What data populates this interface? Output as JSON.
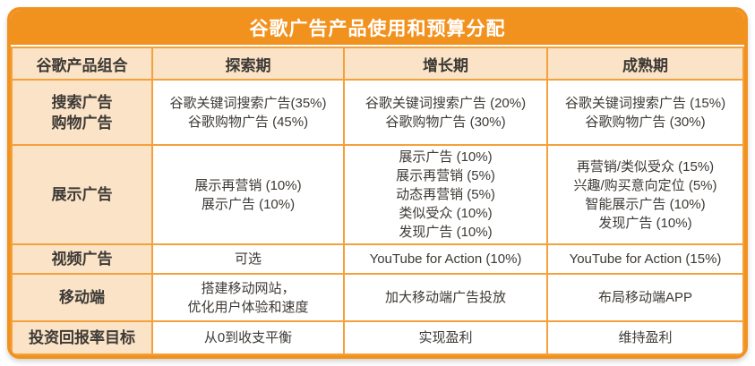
{
  "colors": {
    "accent_orange": "#F2921E",
    "grid_orange": "#F5A13B",
    "header_peach": "#FAE3C6",
    "text_dark": "#3D3935",
    "title_text": "#FFFFFF"
  },
  "chart_data": {
    "type": "table",
    "title": "谷歌广告产品使用和预算分配",
    "columns": [
      "谷歌产品组合",
      "探索期",
      "增长期",
      "成熟期"
    ],
    "rows": [
      {
        "label_lines": [
          "搜索广告",
          "购物广告"
        ],
        "exploration": [
          "谷歌关键词搜索广告(35%)",
          "谷歌购物广告 (45%)"
        ],
        "growth": [
          "谷歌关键词搜索广告 (20%)",
          "谷歌购物广告 (30%)"
        ],
        "maturity": [
          "谷歌关键词搜索广告 (15%)",
          "谷歌购物广告 (30%)"
        ]
      },
      {
        "label_lines": [
          "展示广告"
        ],
        "exploration": [
          "展示再营销 (10%)",
          "展示广告 (10%)"
        ],
        "growth": [
          "展示广告 (10%)",
          "展示再营销 (5%)",
          "动态再营销 (5%)",
          "类似受众 (10%)",
          "发现广告 (10%)"
        ],
        "maturity": [
          "再营销/类似受众 (15%)",
          "兴趣/购买意向定位 (5%)",
          "智能展示广告 (10%)",
          "发现广告 (10%)"
        ]
      },
      {
        "label_lines": [
          "视频广告"
        ],
        "exploration": [
          "可选"
        ],
        "growth": [
          "YouTube for Action (10%)"
        ],
        "maturity": [
          "YouTube for Action (15%)"
        ]
      },
      {
        "label_lines": [
          "移动端"
        ],
        "exploration": [
          "搭建移动网站，",
          "优化用户体验和速度"
        ],
        "growth": [
          "加大移动端广告投放"
        ],
        "maturity": [
          "布局移动端APP"
        ]
      },
      {
        "label_lines": [
          "投资回报率目标"
        ],
        "exploration": [
          "从0到收支平衡"
        ],
        "growth": [
          "实现盈利"
        ],
        "maturity": [
          "维持盈利"
        ]
      }
    ]
  }
}
